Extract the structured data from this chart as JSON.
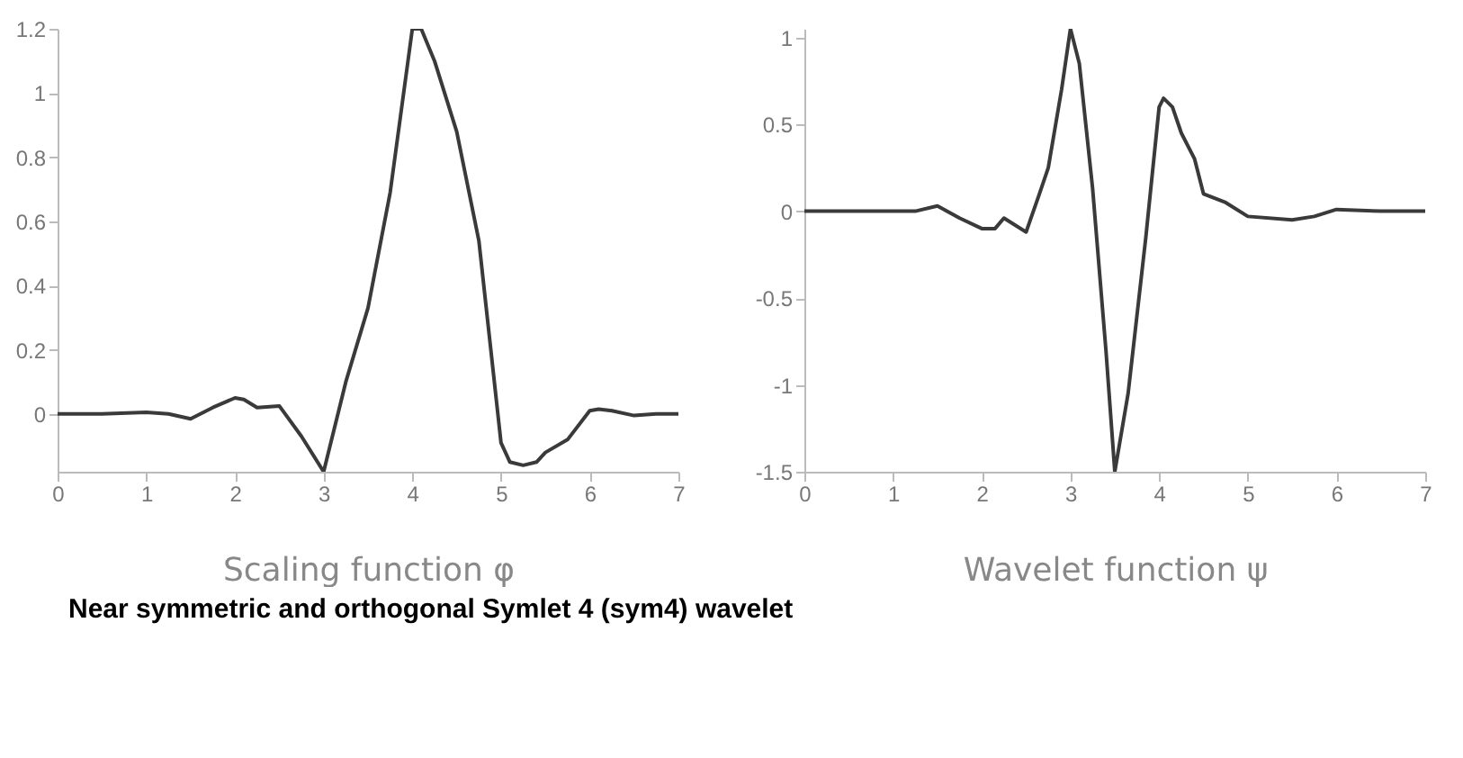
{
  "chart_data": [
    {
      "type": "line",
      "xlabel": "Scaling function φ",
      "xlim": [
        0,
        7
      ],
      "xticks": [
        0,
        1,
        2,
        3,
        4,
        5,
        6,
        7
      ],
      "ylim": [
        -0.18,
        1.2
      ],
      "yticks": [
        0,
        0.2,
        0.4,
        0.6,
        0.8,
        1,
        1.2
      ],
      "grid": false,
      "x": [
        0,
        0.5,
        1,
        1.25,
        1.5,
        1.75,
        2,
        2.1,
        2.25,
        2.5,
        2.75,
        3,
        3.25,
        3.5,
        3.75,
        4,
        4.1,
        4.25,
        4.5,
        4.75,
        5,
        5.1,
        5.25,
        5.4,
        5.5,
        5.75,
        6,
        6.1,
        6.25,
        6.5,
        6.75,
        7
      ],
      "series": [
        {
          "color": "#3a3a3a",
          "values": [
            0,
            0,
            0.005,
            0,
            -0.015,
            0.02,
            0.05,
            0.045,
            0.02,
            0.025,
            -0.07,
            -0.18,
            0.1,
            0.33,
            0.69,
            1.2,
            1.2,
            1.1,
            0.88,
            0.54,
            -0.09,
            -0.15,
            -0.16,
            -0.15,
            -0.12,
            -0.08,
            0.01,
            0.015,
            0.01,
            -0.005,
            0,
            0
          ]
        }
      ],
      "annotations": [
        "Near symmetric and orthogonal Symlet 4 (sym4) wavelet"
      ]
    },
    {
      "type": "line",
      "xlabel": "Wavelet function ψ",
      "xlim": [
        0,
        7
      ],
      "xticks": [
        0,
        1,
        2,
        3,
        4,
        5,
        6,
        7
      ],
      "ylim": [
        -1.5,
        1.05
      ],
      "yticks": [
        -1.5,
        -1,
        -0.5,
        0,
        0.5,
        1
      ],
      "grid": false,
      "x": [
        0,
        1,
        1.25,
        1.5,
        1.75,
        2,
        2.15,
        2.25,
        2.5,
        2.65,
        2.75,
        2.9,
        3,
        3.1,
        3.25,
        3.4,
        3.5,
        3.65,
        3.85,
        4,
        4.05,
        4.15,
        4.25,
        4.4,
        4.5,
        4.75,
        5,
        5.5,
        5.75,
        6,
        6.5,
        7
      ],
      "series": [
        {
          "color": "#3a3a3a",
          "values": [
            0,
            0,
            0,
            0.03,
            -0.04,
            -0.1,
            -0.1,
            -0.04,
            -0.12,
            0.1,
            0.25,
            0.7,
            1.05,
            0.85,
            0.13,
            -0.8,
            -1.5,
            -1.05,
            -0.15,
            0.6,
            0.65,
            0.6,
            0.45,
            0.3,
            0.1,
            0.05,
            -0.03,
            -0.05,
            -0.03,
            0.01,
            0,
            0
          ]
        }
      ]
    }
  ]
}
